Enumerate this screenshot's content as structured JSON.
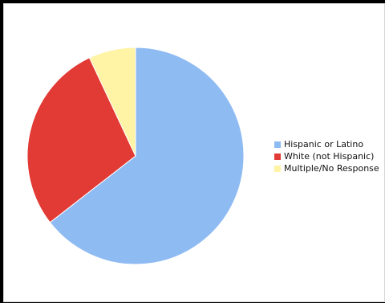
{
  "chart_data": {
    "type": "pie",
    "title": "",
    "series": [
      {
        "categories": [
          "Hispanic or Latino",
          "White (not Hispanic)",
          "Multiple/No Response"
        ],
        "values": [
          64.5,
          28.5,
          7.0
        ],
        "colors": [
          "#8fbbf3",
          "#e23a34",
          "#fff3a6"
        ]
      }
    ],
    "start_angle_deg": 0,
    "direction": "clockwise",
    "legend": {
      "position": "right",
      "items": [
        {
          "label": "Hispanic or Latino",
          "color": "#8fbbf3"
        },
        {
          "label": "White (not Hispanic)",
          "color": "#e23a34"
        },
        {
          "label": "Multiple/No Response",
          "color": "#fff3a6"
        }
      ]
    }
  }
}
